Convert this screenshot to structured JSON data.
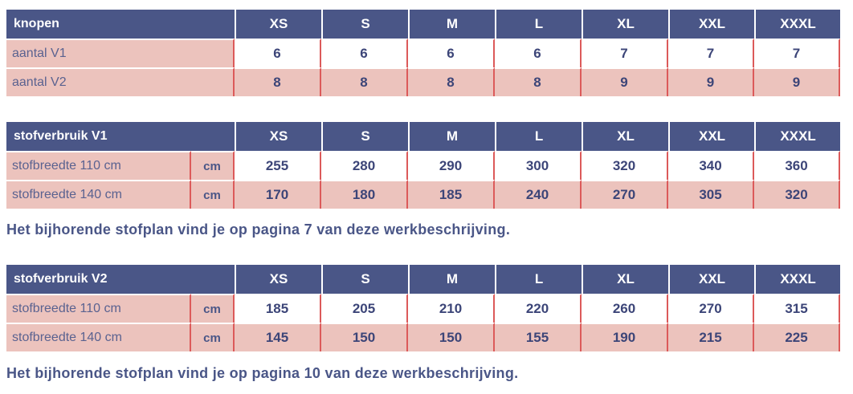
{
  "sizes": [
    "XS",
    "S",
    "M",
    "L",
    "XL",
    "XXL",
    "XXXL"
  ],
  "knopen": {
    "title": "knopen",
    "rows": [
      {
        "label": "aantal V1",
        "values": [
          "6",
          "6",
          "6",
          "6",
          "7",
          "7",
          "7"
        ]
      },
      {
        "label": "aantal V2",
        "values": [
          "8",
          "8",
          "8",
          "8",
          "9",
          "9",
          "9"
        ]
      }
    ]
  },
  "stof_v1": {
    "title": "stofverbruik V1",
    "rows": [
      {
        "label": "stofbreedte 110 cm",
        "unit": "cm",
        "values": [
          "255",
          "280",
          "290",
          "300",
          "320",
          "340",
          "360"
        ]
      },
      {
        "label": "stofbreedte 140 cm",
        "unit": "cm",
        "values": [
          "170",
          "180",
          "185",
          "240",
          "270",
          "305",
          "320"
        ]
      }
    ],
    "note": "Het bijhorende stofplan vind je op pagina 7 van deze werkbeschrijving."
  },
  "stof_v2": {
    "title": "stofverbruik V2",
    "rows": [
      {
        "label": "stofbreedte 110 cm",
        "unit": "cm",
        "values": [
          "185",
          "205",
          "210",
          "220",
          "260",
          "270",
          "315"
        ]
      },
      {
        "label": "stofbreedte 140 cm",
        "unit": "cm",
        "values": [
          "145",
          "150",
          "150",
          "155",
          "190",
          "215",
          "225"
        ]
      }
    ],
    "note": "Het bijhorende stofplan vind je op pagina 10 van deze werkbeschrijving."
  }
}
